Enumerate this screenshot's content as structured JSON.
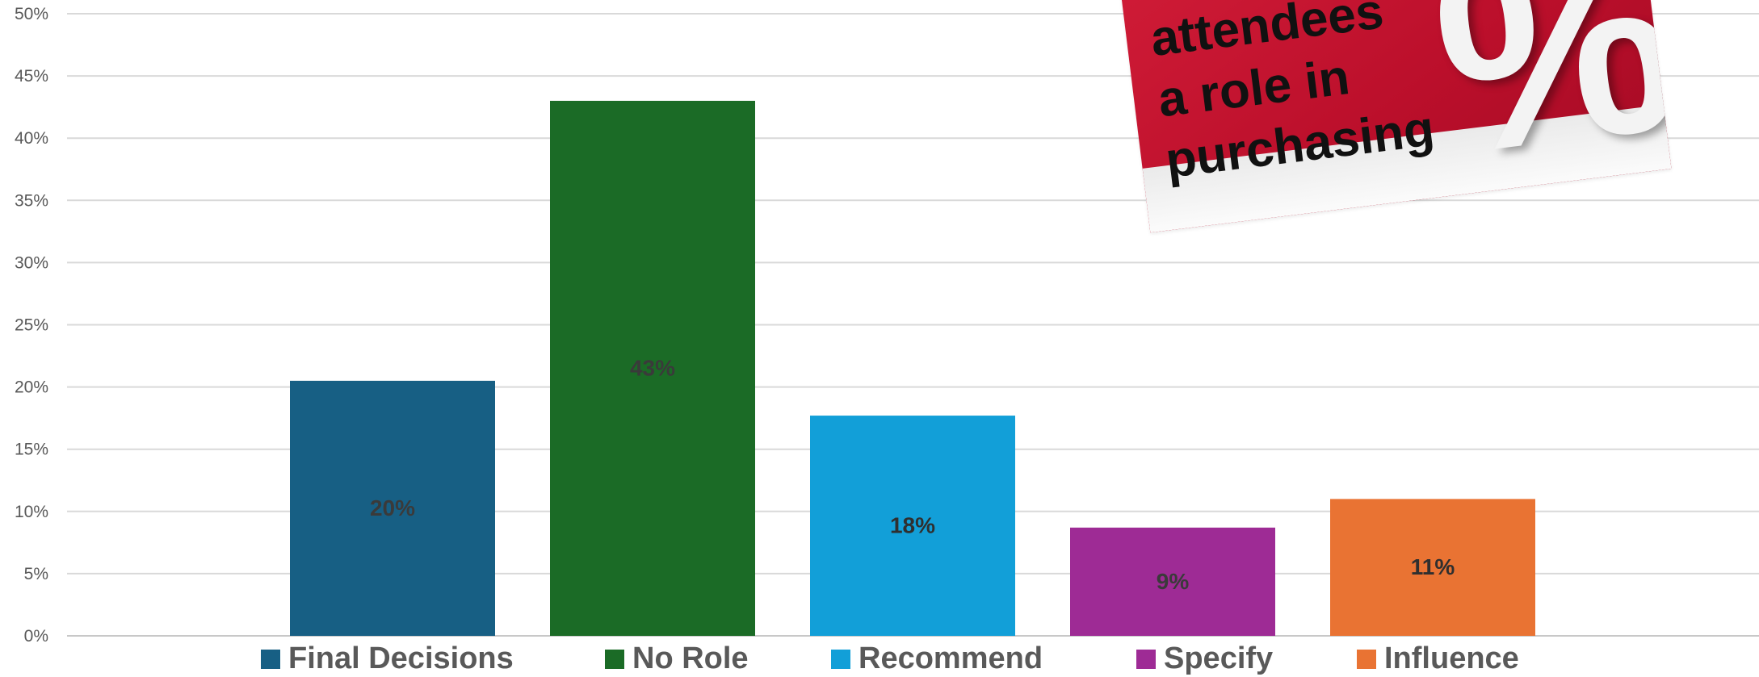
{
  "chart_data": {
    "type": "bar",
    "categories": [
      "Final Decisions",
      "No Role",
      "Recommend",
      "Specify",
      "Influence"
    ],
    "values": [
      20.5,
      43,
      17.7,
      8.7,
      11
    ],
    "data_labels": [
      "20%",
      "43%",
      "18%",
      "9%",
      "11%"
    ],
    "colors": [
      "#175f84",
      "#1b6b26",
      "#129fd8",
      "#9e2b95",
      "#e97333"
    ],
    "label_colors": [
      "#3a3a3a",
      "#3a3a3a",
      "#2f2f2f",
      "#3a3a3a",
      "#2f2f2f"
    ],
    "ylim": [
      0,
      50
    ],
    "yticks": [
      "0%",
      "5%",
      "10%",
      "15%",
      "20%",
      "25%",
      "30%",
      "35%",
      "40%",
      "45%",
      "50%"
    ],
    "grid": true,
    "legend_position": "bottom",
    "title": "",
    "xlabel": "",
    "ylabel": ""
  },
  "photo": {
    "lines": [
      "attendees",
      "a role in",
      "purchasing"
    ],
    "symbol": "%"
  }
}
